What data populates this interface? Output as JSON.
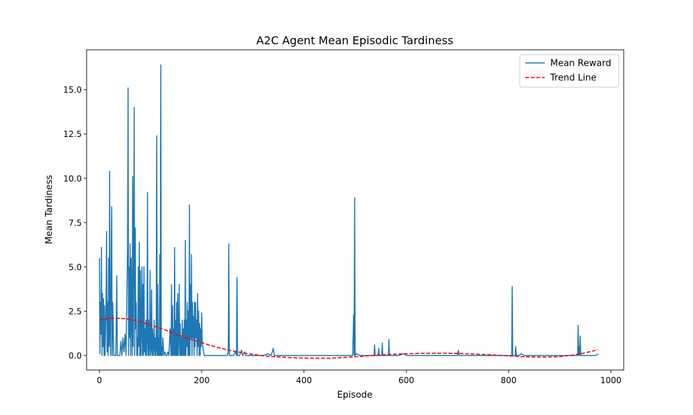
{
  "chart_data": {
    "type": "line",
    "title": "A2C Agent Mean Episodic Tardiness",
    "xlabel": "Episode",
    "ylabel": "Mean Tardiness",
    "xlim": [
      -25,
      1025
    ],
    "ylim": [
      -0.82,
      17.25
    ],
    "x_ticks": [
      0,
      200,
      400,
      600,
      800,
      1000
    ],
    "y_ticks": [
      0.0,
      2.5,
      5.0,
      7.5,
      10.0,
      12.5,
      15.0
    ],
    "x_tick_labels": [
      "0",
      "200",
      "400",
      "600",
      "800",
      "1000"
    ],
    "y_tick_labels": [
      "0.0",
      "2.5",
      "5.0",
      "7.5",
      "10.0",
      "12.5",
      "15.0"
    ],
    "grid": false,
    "legend_position": "top-right",
    "series": [
      {
        "name": "Mean Reward",
        "color": "#1f77b4",
        "style": "solid",
        "points": [
          [
            0,
            5.5
          ],
          [
            1,
            0.1
          ],
          [
            2,
            3.0
          ],
          [
            3,
            1.2
          ],
          [
            4,
            6.1
          ],
          [
            5,
            0.0
          ],
          [
            6,
            3.5
          ],
          [
            7,
            0.5
          ],
          [
            8,
            3.2
          ],
          [
            9,
            0.0
          ],
          [
            10,
            2.8
          ],
          [
            11,
            0.0
          ],
          [
            12,
            1.5
          ],
          [
            13,
            3.0
          ],
          [
            14,
            7.0
          ],
          [
            15,
            0.2
          ],
          [
            16,
            3.0
          ],
          [
            17,
            0.0
          ],
          [
            18,
            5.5
          ],
          [
            19,
            0.5
          ],
          [
            20,
            10.4
          ],
          [
            21,
            1.0
          ],
          [
            22,
            0.0
          ],
          [
            23,
            4.8
          ],
          [
            24,
            8.4
          ],
          [
            25,
            0.0
          ],
          [
            26,
            3.0
          ],
          [
            27,
            1.5
          ],
          [
            28,
            0.0
          ],
          [
            29,
            0.0
          ],
          [
            30,
            0.0
          ],
          [
            31,
            0.0
          ],
          [
            32,
            0.0
          ],
          [
            33,
            2.0
          ],
          [
            34,
            4.5
          ],
          [
            35,
            0.0
          ],
          [
            36,
            0.0
          ],
          [
            40,
            0.0
          ],
          [
            42,
            0.8
          ],
          [
            44,
            0.0
          ],
          [
            46,
            1.0
          ],
          [
            48,
            0.2
          ],
          [
            50,
            1.2
          ],
          [
            52,
            0.0
          ],
          [
            54,
            4.0
          ],
          [
            55,
            6.0
          ],
          [
            56,
            15.1
          ],
          [
            57,
            0.0
          ],
          [
            58,
            5.0
          ],
          [
            59,
            1.0
          ],
          [
            60,
            6.3
          ],
          [
            61,
            0.0
          ],
          [
            62,
            5.5
          ],
          [
            63,
            2.0
          ],
          [
            64,
            0.0
          ],
          [
            65,
            10.1
          ],
          [
            66,
            0.5
          ],
          [
            67,
            6.0
          ],
          [
            68,
            14.0
          ],
          [
            69,
            0.0
          ],
          [
            70,
            7.2
          ],
          [
            71,
            1.5
          ],
          [
            72,
            3.0
          ],
          [
            73,
            0.0
          ],
          [
            74,
            1.0
          ],
          [
            75,
            0.0
          ],
          [
            76,
            5.0
          ],
          [
            77,
            0.5
          ],
          [
            78,
            6.4
          ],
          [
            79,
            0.0
          ],
          [
            80,
            4.8
          ],
          [
            81,
            0.0
          ],
          [
            82,
            1.5
          ],
          [
            83,
            5.0
          ],
          [
            84,
            0.0
          ],
          [
            85,
            4.0
          ],
          [
            86,
            0.0
          ],
          [
            87,
            5.0
          ],
          [
            88,
            0.2
          ],
          [
            89,
            1.5
          ],
          [
            90,
            0.0
          ],
          [
            91,
            2.0
          ],
          [
            92,
            0.0
          ],
          [
            93,
            1.0
          ],
          [
            94,
            9.2
          ],
          [
            95,
            0.0
          ],
          [
            96,
            2.0
          ],
          [
            97,
            0.0
          ],
          [
            98,
            0.5
          ],
          [
            99,
            4.8
          ],
          [
            100,
            0.0
          ],
          [
            101,
            0.3
          ],
          [
            102,
            3.7
          ],
          [
            103,
            0.0
          ],
          [
            104,
            1.5
          ],
          [
            105,
            0.0
          ],
          [
            106,
            0.5
          ],
          [
            107,
            2.0
          ],
          [
            108,
            0.0
          ],
          [
            109,
            1.0
          ],
          [
            110,
            0.0
          ],
          [
            111,
            0.3
          ],
          [
            112,
            12.4
          ],
          [
            113,
            0.0
          ],
          [
            114,
            4.0
          ],
          [
            115,
            0.0
          ],
          [
            116,
            1.0
          ],
          [
            117,
            0.0
          ],
          [
            118,
            5.7
          ],
          [
            119,
            0.0
          ],
          [
            120,
            16.4
          ],
          [
            121,
            0.0
          ],
          [
            122,
            0.5
          ],
          [
            123,
            0.0
          ],
          [
            124,
            1.0
          ],
          [
            126,
            0.0
          ],
          [
            128,
            0.2
          ],
          [
            130,
            0.0
          ],
          [
            132,
            0.0
          ],
          [
            134,
            0.2
          ],
          [
            136,
            0.0
          ],
          [
            138,
            1.5
          ],
          [
            140,
            0.0
          ],
          [
            141,
            4.0
          ],
          [
            142,
            0.0
          ],
          [
            143,
            2.8
          ],
          [
            144,
            0.0
          ],
          [
            145,
            1.5
          ],
          [
            146,
            0.0
          ],
          [
            147,
            6.1
          ],
          [
            148,
            0.0
          ],
          [
            149,
            2.0
          ],
          [
            150,
            0.0
          ],
          [
            151,
            3.0
          ],
          [
            152,
            0.0
          ],
          [
            153,
            3.5
          ],
          [
            154,
            0.0
          ],
          [
            155,
            1.0
          ],
          [
            156,
            4.0
          ],
          [
            157,
            0.0
          ],
          [
            158,
            1.8
          ],
          [
            159,
            0.0
          ],
          [
            160,
            1.0
          ],
          [
            161,
            0.0
          ],
          [
            162,
            2.0
          ],
          [
            163,
            0.0
          ],
          [
            164,
            1.5
          ],
          [
            165,
            0.0
          ],
          [
            166,
            2.0
          ],
          [
            167,
            0.0
          ],
          [
            168,
            6.5
          ],
          [
            169,
            0.0
          ],
          [
            170,
            2.0
          ],
          [
            171,
            0.5
          ],
          [
            172,
            3.0
          ],
          [
            173,
            0.0
          ],
          [
            174,
            2.5
          ],
          [
            175,
            0.0
          ],
          [
            176,
            8.5
          ],
          [
            177,
            0.0
          ],
          [
            178,
            4.0
          ],
          [
            179,
            1.0
          ],
          [
            180,
            5.7
          ],
          [
            181,
            0.0
          ],
          [
            182,
            3.0
          ],
          [
            183,
            1.0
          ],
          [
            184,
            2.2
          ],
          [
            185,
            0.0
          ],
          [
            186,
            3.0
          ],
          [
            187,
            0.5
          ],
          [
            188,
            3.0
          ],
          [
            189,
            1.0
          ],
          [
            190,
            2.0
          ],
          [
            191,
            0.0
          ],
          [
            192,
            3.5
          ],
          [
            193,
            0.5
          ],
          [
            194,
            2.5
          ],
          [
            195,
            0.0
          ],
          [
            196,
            1.8
          ],
          [
            197,
            0.0
          ],
          [
            198,
            1.5
          ],
          [
            199,
            0.5
          ],
          [
            200,
            2.4
          ],
          [
            201,
            0.8
          ],
          [
            203,
            0.3
          ],
          [
            205,
            0.0
          ],
          [
            210,
            0.0
          ],
          [
            220,
            0.0
          ],
          [
            230,
            0.0
          ],
          [
            240,
            0.0
          ],
          [
            250,
            0.0
          ],
          [
            252,
            0.2
          ],
          [
            253,
            6.3
          ],
          [
            254,
            0.0
          ],
          [
            258,
            0.0
          ],
          [
            262,
            0.0
          ],
          [
            266,
            0.2
          ],
          [
            268,
            0.0
          ],
          [
            269,
            4.4
          ],
          [
            270,
            0.0
          ],
          [
            274,
            0.0
          ],
          [
            278,
            0.3
          ],
          [
            280,
            0.0
          ],
          [
            284,
            0.2
          ],
          [
            286,
            0.0
          ],
          [
            290,
            0.0
          ],
          [
            300,
            0.0
          ],
          [
            310,
            0.0
          ],
          [
            320,
            0.0
          ],
          [
            330,
            0.1
          ],
          [
            335,
            0.0
          ],
          [
            338,
            0.2
          ],
          [
            340,
            0.4
          ],
          [
            342,
            0.0
          ],
          [
            350,
            0.0
          ],
          [
            360,
            0.0
          ],
          [
            370,
            0.0
          ],
          [
            380,
            0.0
          ],
          [
            390,
            0.0
          ],
          [
            400,
            0.0
          ],
          [
            420,
            0.0
          ],
          [
            440,
            0.0
          ],
          [
            460,
            0.0
          ],
          [
            480,
            0.0
          ],
          [
            495,
            0.0
          ],
          [
            497,
            2.3
          ],
          [
            498,
            0.0
          ],
          [
            499,
            8.9
          ],
          [
            500,
            0.0
          ],
          [
            502,
            0.1
          ],
          [
            510,
            0.0
          ],
          [
            520,
            0.0
          ],
          [
            530,
            0.0
          ],
          [
            537,
            0.0
          ],
          [
            538,
            0.6
          ],
          [
            539,
            0.0
          ],
          [
            545,
            0.0
          ],
          [
            546,
            0.4
          ],
          [
            547,
            0.0
          ],
          [
            552,
            0.0
          ],
          [
            553,
            0.7
          ],
          [
            554,
            0.0
          ],
          [
            560,
            0.0
          ],
          [
            565,
            0.0
          ],
          [
            566,
            0.9
          ],
          [
            567,
            0.0
          ],
          [
            575,
            0.0
          ],
          [
            585,
            0.0
          ],
          [
            595,
            0.1
          ],
          [
            600,
            0.0
          ],
          [
            620,
            0.0
          ],
          [
            640,
            0.0
          ],
          [
            660,
            0.0
          ],
          [
            680,
            0.0
          ],
          [
            700,
            0.0
          ],
          [
            702,
            0.3
          ],
          [
            703,
            0.0
          ],
          [
            720,
            0.0
          ],
          [
            740,
            0.0
          ],
          [
            760,
            0.0
          ],
          [
            780,
            0.0
          ],
          [
            800,
            0.0
          ],
          [
            806,
            0.0
          ],
          [
            807,
            3.9
          ],
          [
            808,
            0.0
          ],
          [
            813,
            0.0
          ],
          [
            814,
            0.5
          ],
          [
            815,
            0.0
          ],
          [
            820,
            0.0
          ],
          [
            825,
            0.1
          ],
          [
            830,
            0.0
          ],
          [
            840,
            0.0
          ],
          [
            860,
            0.0
          ],
          [
            880,
            0.0
          ],
          [
            900,
            0.0
          ],
          [
            920,
            0.0
          ],
          [
            935,
            0.0
          ],
          [
            936,
            1.7
          ],
          [
            937,
            0.0
          ],
          [
            938,
            0.5
          ],
          [
            939,
            0.0
          ],
          [
            940,
            1.1
          ],
          [
            941,
            0.0
          ],
          [
            950,
            0.0
          ],
          [
            960,
            0.0
          ],
          [
            970,
            0.0
          ],
          [
            975,
            0.1
          ]
        ]
      },
      {
        "name": "Trend Line",
        "color": "#ff0000",
        "style": "dashed",
        "points": [
          [
            0,
            2.0
          ],
          [
            25,
            2.12
          ],
          [
            50,
            2.08
          ],
          [
            75,
            1.95
          ],
          [
            100,
            1.72
          ],
          [
            125,
            1.48
          ],
          [
            150,
            1.2
          ],
          [
            175,
            0.95
          ],
          [
            200,
            0.72
          ],
          [
            225,
            0.5
          ],
          [
            250,
            0.32
          ],
          [
            275,
            0.18
          ],
          [
            300,
            0.06
          ],
          [
            325,
            -0.03
          ],
          [
            350,
            -0.08
          ],
          [
            375,
            -0.12
          ],
          [
            400,
            -0.14
          ],
          [
            425,
            -0.15
          ],
          [
            450,
            -0.15
          ],
          [
            475,
            -0.12
          ],
          [
            500,
            -0.07
          ],
          [
            525,
            -0.02
          ],
          [
            550,
            0.03
          ],
          [
            575,
            0.07
          ],
          [
            600,
            0.1
          ],
          [
            625,
            0.12
          ],
          [
            650,
            0.13
          ],
          [
            675,
            0.13
          ],
          [
            700,
            0.12
          ],
          [
            725,
            0.09
          ],
          [
            750,
            0.06
          ],
          [
            775,
            0.02
          ],
          [
            800,
            -0.02
          ],
          [
            825,
            -0.06
          ],
          [
            850,
            -0.08
          ],
          [
            875,
            -0.09
          ],
          [
            900,
            -0.06
          ],
          [
            925,
            0.02
          ],
          [
            950,
            0.15
          ],
          [
            975,
            0.33
          ]
        ]
      }
    ]
  }
}
